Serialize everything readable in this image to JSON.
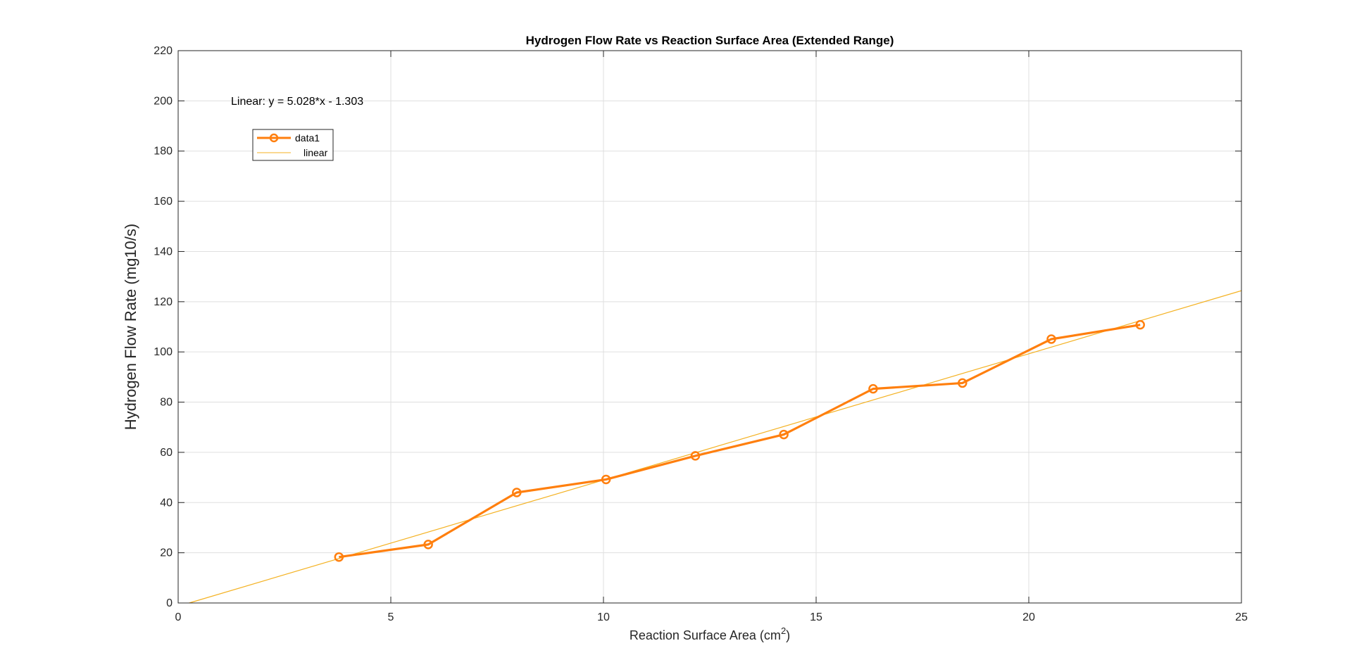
{
  "chart_data": {
    "type": "line",
    "title": "Hydrogen Flow Rate vs Reaction Surface Area (Extended Range)",
    "xlabel": "Reaction Surface Area (cm",
    "xlabel_sup": "2",
    "xlabel_end": ")",
    "ylabel": "Hydrogen Flow Rate (mg10/s)",
    "xlim": [
      0,
      25
    ],
    "ylim": [
      0,
      220
    ],
    "xticks": [
      0,
      5,
      10,
      15,
      20,
      25
    ],
    "yticks": [
      0,
      20,
      40,
      60,
      80,
      100,
      120,
      140,
      160,
      180,
      200,
      220
    ],
    "grid": true,
    "legend_position": "top-left",
    "annotation": "Linear:  y = 5.028*x - 1.303",
    "series": [
      {
        "name": "data1",
        "color": "#ff7f0e",
        "marker": "circle",
        "x": [
          3.78,
          5.88,
          7.96,
          10.06,
          12.16,
          14.24,
          16.34,
          18.44,
          20.53,
          22.62
        ],
        "y": [
          18.3,
          23.3,
          44.0,
          49.2,
          58.6,
          67.1,
          85.3,
          87.6,
          105.1,
          110.8
        ]
      },
      {
        "name": "linear",
        "color": "#f4b223",
        "slope": 5.028,
        "intercept": -1.303,
        "x_range": [
          0,
          25
        ]
      }
    ]
  }
}
